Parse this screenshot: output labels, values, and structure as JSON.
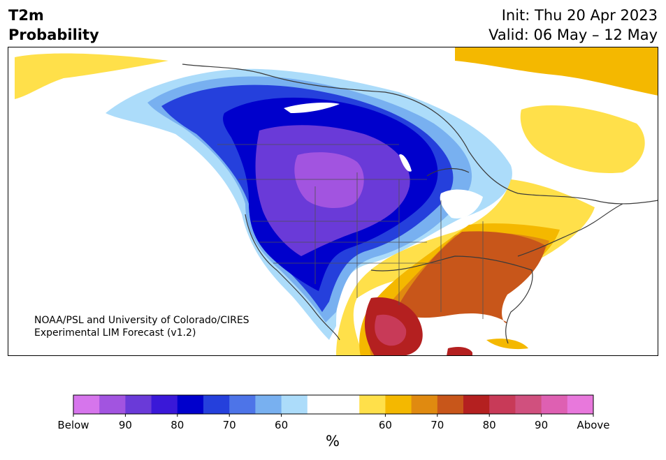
{
  "title": {
    "variable": "T2m",
    "subtitle": "Probability",
    "init": "Init: Thu 20 Apr 2023",
    "valid": "Valid: 06 May – 12 May"
  },
  "credit": {
    "line1": "NOAA/PSL and University of Colorado/CIRES",
    "line2": "Experimental LIM Forecast (v1.2)"
  },
  "colorbar": {
    "unit": "%",
    "colors": [
      "#d675ec",
      "#a254e0",
      "#6a3ad8",
      "#3a18d8",
      "#0000cc",
      "#2540dc",
      "#4d74e8",
      "#78b0f0",
      "#acdcfa",
      "#ffffff",
      "#ffffff",
      "#ffe04a",
      "#f4b800",
      "#e08a10",
      "#c8561a",
      "#b42020",
      "#c83a58",
      "#d0507e",
      "#de60b2",
      "#e878dc"
    ],
    "tick_labels": [
      "Below",
      "90",
      "80",
      "70",
      "60",
      "60",
      "70",
      "80",
      "90",
      "Above"
    ]
  },
  "regions": [
    {
      "name": "below-normal-outer",
      "color": "#acdcfa"
    },
    {
      "name": "below-normal-60",
      "color": "#78b0f0"
    },
    {
      "name": "below-normal-70",
      "color": "#2540dc"
    },
    {
      "name": "below-normal-80",
      "color": "#0000cc"
    },
    {
      "name": "below-normal-85",
      "color": "#6a3ad8"
    },
    {
      "name": "below-normal-core",
      "color": "#a254e0"
    },
    {
      "name": "above-normal-50",
      "color": "#ffe04a"
    },
    {
      "name": "above-normal-60",
      "color": "#f4b800"
    },
    {
      "name": "above-normal-65",
      "color": "#e08a10"
    },
    {
      "name": "above-normal-70",
      "color": "#c8561a"
    },
    {
      "name": "above-normal-80",
      "color": "#b42020"
    },
    {
      "name": "above-normal-85",
      "color": "#c83a58"
    }
  ]
}
